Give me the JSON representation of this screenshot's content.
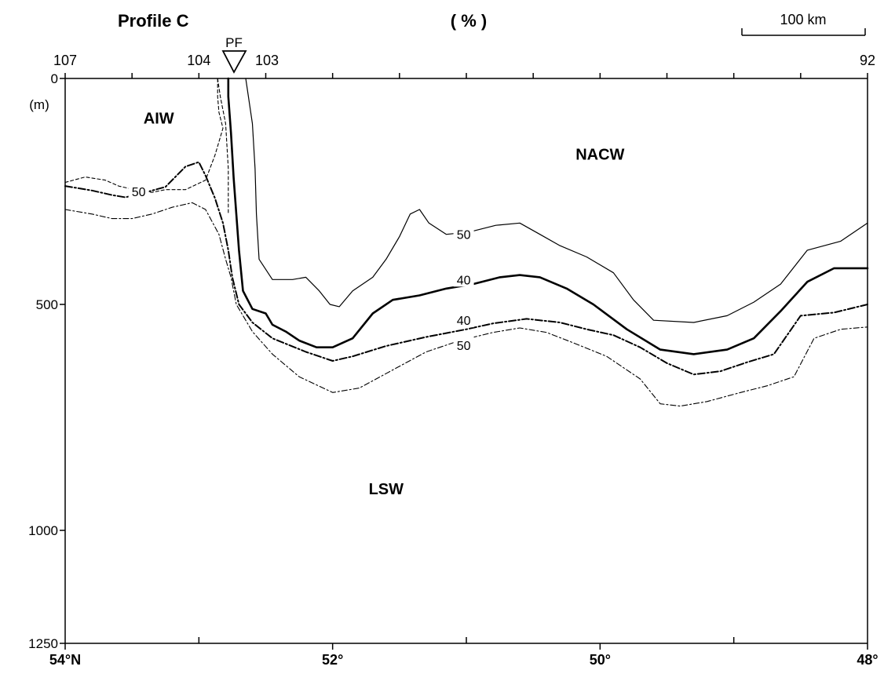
{
  "chart_data": {
    "type": "line",
    "title": "Profile C",
    "unit": "( % )",
    "scale_bar": "100 km",
    "front_label": "PF",
    "y_axis": {
      "reversed": true,
      "ylim": [
        0,
        1250
      ],
      "ticks": [
        {
          "value": 0,
          "label": "0"
        },
        {
          "value": 500,
          "label": "500"
        },
        {
          "value": 1000,
          "label": "1000"
        },
        {
          "value": 1250,
          "label": "1250"
        }
      ],
      "unit_label": "(m)"
    },
    "x_axis": {
      "xlim": [
        54,
        48
      ],
      "bottom_ticks": [
        {
          "value": 54,
          "label": "54°N"
        },
        {
          "value": 52,
          "label": "52°"
        },
        {
          "value": 50,
          "label": "50°"
        },
        {
          "value": 48,
          "label": "48°"
        }
      ],
      "minor_ticks": [
        53,
        51,
        49
      ]
    },
    "stations": {
      "ticks": [
        54,
        53.5,
        53,
        52.5,
        52,
        51.5,
        51,
        50.5,
        50,
        49.5,
        49,
        48.5,
        48
      ],
      "labels": [
        {
          "x": 54,
          "label": "107"
        },
        {
          "x": 53,
          "label": "104"
        },
        {
          "x": 52.55,
          "label": "103"
        },
        {
          "x": 48,
          "label": "92"
        }
      ],
      "front_x": 52.75
    },
    "water_masses": [
      {
        "label": "AIW",
        "x": 53.3,
        "depth": 100
      },
      {
        "label": "NACW",
        "x": 50,
        "depth": 180
      },
      {
        "label": "LSW",
        "x": 51.6,
        "depth": 920
      }
    ],
    "series": [
      {
        "style": "dashed-thin",
        "points": [
          [
            54,
            230
          ],
          [
            53.85,
            218
          ],
          [
            53.7,
            225
          ],
          [
            53.6,
            238
          ],
          [
            53.5,
            245
          ],
          [
            53.35,
            252
          ],
          [
            53.25,
            246
          ],
          [
            53.1,
            246
          ],
          [
            52.95,
            225
          ],
          [
            52.88,
            170
          ],
          [
            52.82,
            110
          ],
          [
            52.85,
            75
          ],
          [
            52.86,
            40
          ],
          [
            52.86,
            0
          ]
        ]
      },
      {
        "style": "dashdot-thick",
        "points": [
          [
            54,
            238
          ],
          [
            53.8,
            248
          ],
          [
            53.65,
            258
          ],
          [
            53.55,
            263
          ],
          [
            53.4,
            252
          ],
          [
            53.25,
            240
          ],
          [
            53.1,
            195
          ],
          [
            53.0,
            185
          ],
          [
            52.95,
            215
          ],
          [
            52.88,
            265
          ],
          [
            52.82,
            320
          ],
          [
            52.78,
            380
          ],
          [
            52.75,
            440
          ],
          [
            52.7,
            500
          ],
          [
            52.6,
            540
          ],
          [
            52.45,
            575
          ],
          [
            52.2,
            605
          ],
          [
            52.0,
            625
          ],
          [
            51.85,
            615
          ],
          [
            51.6,
            592
          ],
          [
            51.3,
            572
          ],
          [
            51.0,
            555
          ],
          [
            50.8,
            542
          ],
          [
            50.55,
            532
          ],
          [
            50.3,
            540
          ],
          [
            50.1,
            555
          ],
          [
            49.9,
            568
          ],
          [
            49.7,
            595
          ],
          [
            49.5,
            630
          ],
          [
            49.3,
            655
          ],
          [
            49.1,
            648
          ],
          [
            48.9,
            628
          ],
          [
            48.7,
            610
          ],
          [
            48.5,
            525
          ],
          [
            48.25,
            518
          ],
          [
            48,
            500
          ]
        ]
      },
      {
        "style": "dashdot-thin",
        "label": "50",
        "label_at": [
          51.02,
          590
        ],
        "points": [
          [
            54,
            290
          ],
          [
            53.8,
            300
          ],
          [
            53.65,
            310
          ],
          [
            53.5,
            310
          ],
          [
            53.35,
            300
          ],
          [
            53.2,
            285
          ],
          [
            53.05,
            275
          ],
          [
            52.95,
            290
          ],
          [
            52.85,
            345
          ],
          [
            52.8,
            400
          ],
          [
            52.76,
            440
          ],
          [
            52.72,
            500
          ],
          [
            52.6,
            560
          ],
          [
            52.45,
            610
          ],
          [
            52.25,
            660
          ],
          [
            52.0,
            695
          ],
          [
            51.8,
            685
          ],
          [
            51.55,
            645
          ],
          [
            51.3,
            605
          ],
          [
            51.05,
            580
          ],
          [
            50.8,
            562
          ],
          [
            50.6,
            552
          ],
          [
            50.4,
            562
          ],
          [
            50.2,
            585
          ],
          [
            49.95,
            615
          ],
          [
            49.7,
            665
          ],
          [
            49.55,
            720
          ],
          [
            49.4,
            725
          ],
          [
            49.2,
            715
          ],
          [
            48.95,
            695
          ],
          [
            48.75,
            680
          ],
          [
            48.55,
            660
          ],
          [
            48.4,
            575
          ],
          [
            48.2,
            555
          ],
          [
            48,
            550
          ]
        ]
      },
      {
        "style": "solid-thick",
        "label": "40",
        "label_at": [
          51.02,
          445
        ],
        "points": [
          [
            52.78,
            0
          ],
          [
            52.78,
            40
          ],
          [
            52.76,
            120
          ],
          [
            52.74,
            220
          ],
          [
            52.72,
            300
          ],
          [
            52.7,
            380
          ],
          [
            52.67,
            470
          ],
          [
            52.6,
            510
          ],
          [
            52.5,
            520
          ],
          [
            52.45,
            545
          ],
          [
            52.35,
            560
          ],
          [
            52.25,
            580
          ],
          [
            52.12,
            595
          ],
          [
            52.0,
            595
          ],
          [
            51.85,
            575
          ],
          [
            51.7,
            520
          ],
          [
            51.55,
            490
          ],
          [
            51.35,
            480
          ],
          [
            51.15,
            465
          ],
          [
            50.95,
            455
          ],
          [
            50.75,
            440
          ],
          [
            50.6,
            435
          ],
          [
            50.45,
            440
          ],
          [
            50.25,
            465
          ],
          [
            50.05,
            500
          ],
          [
            49.8,
            555
          ],
          [
            49.55,
            600
          ],
          [
            49.3,
            610
          ],
          [
            49.05,
            600
          ],
          [
            48.85,
            575
          ],
          [
            48.65,
            515
          ],
          [
            48.45,
            450
          ],
          [
            48.25,
            420
          ],
          [
            48,
            420
          ]
        ]
      },
      {
        "style": "solid-thin",
        "label": "50",
        "label_at": [
          51.02,
          345
        ],
        "points": [
          [
            52.65,
            0
          ],
          [
            52.63,
            40
          ],
          [
            52.6,
            100
          ],
          [
            52.58,
            200
          ],
          [
            52.57,
            300
          ],
          [
            52.55,
            400
          ],
          [
            52.45,
            445
          ],
          [
            52.3,
            445
          ],
          [
            52.2,
            440
          ],
          [
            52.1,
            470
          ],
          [
            52.02,
            500
          ],
          [
            51.95,
            505
          ],
          [
            51.85,
            470
          ],
          [
            51.7,
            440
          ],
          [
            51.6,
            400
          ],
          [
            51.5,
            350
          ],
          [
            51.42,
            300
          ],
          [
            51.35,
            290
          ],
          [
            51.28,
            320
          ],
          [
            51.15,
            345
          ],
          [
            50.98,
            340
          ],
          [
            50.78,
            325
          ],
          [
            50.6,
            320
          ],
          [
            50.45,
            345
          ],
          [
            50.3,
            370
          ],
          [
            50.1,
            395
          ],
          [
            49.9,
            430
          ],
          [
            49.75,
            490
          ],
          [
            49.6,
            535
          ],
          [
            49.3,
            540
          ],
          [
            49.05,
            525
          ],
          [
            48.85,
            495
          ],
          [
            48.65,
            455
          ],
          [
            48.45,
            380
          ],
          [
            48.2,
            360
          ],
          [
            48,
            320
          ]
        ]
      },
      {
        "style": "dashed-thin",
        "points": [
          [
            52.86,
            0
          ],
          [
            52.84,
            40
          ],
          [
            52.8,
            100
          ],
          [
            52.78,
            200
          ],
          [
            52.78,
            300
          ]
        ]
      }
    ],
    "extra_labels": [
      {
        "label": "50",
        "x": 53.45,
        "depth": 250
      },
      {
        "label": "40",
        "x": 51.02,
        "depth": 535
      }
    ]
  }
}
